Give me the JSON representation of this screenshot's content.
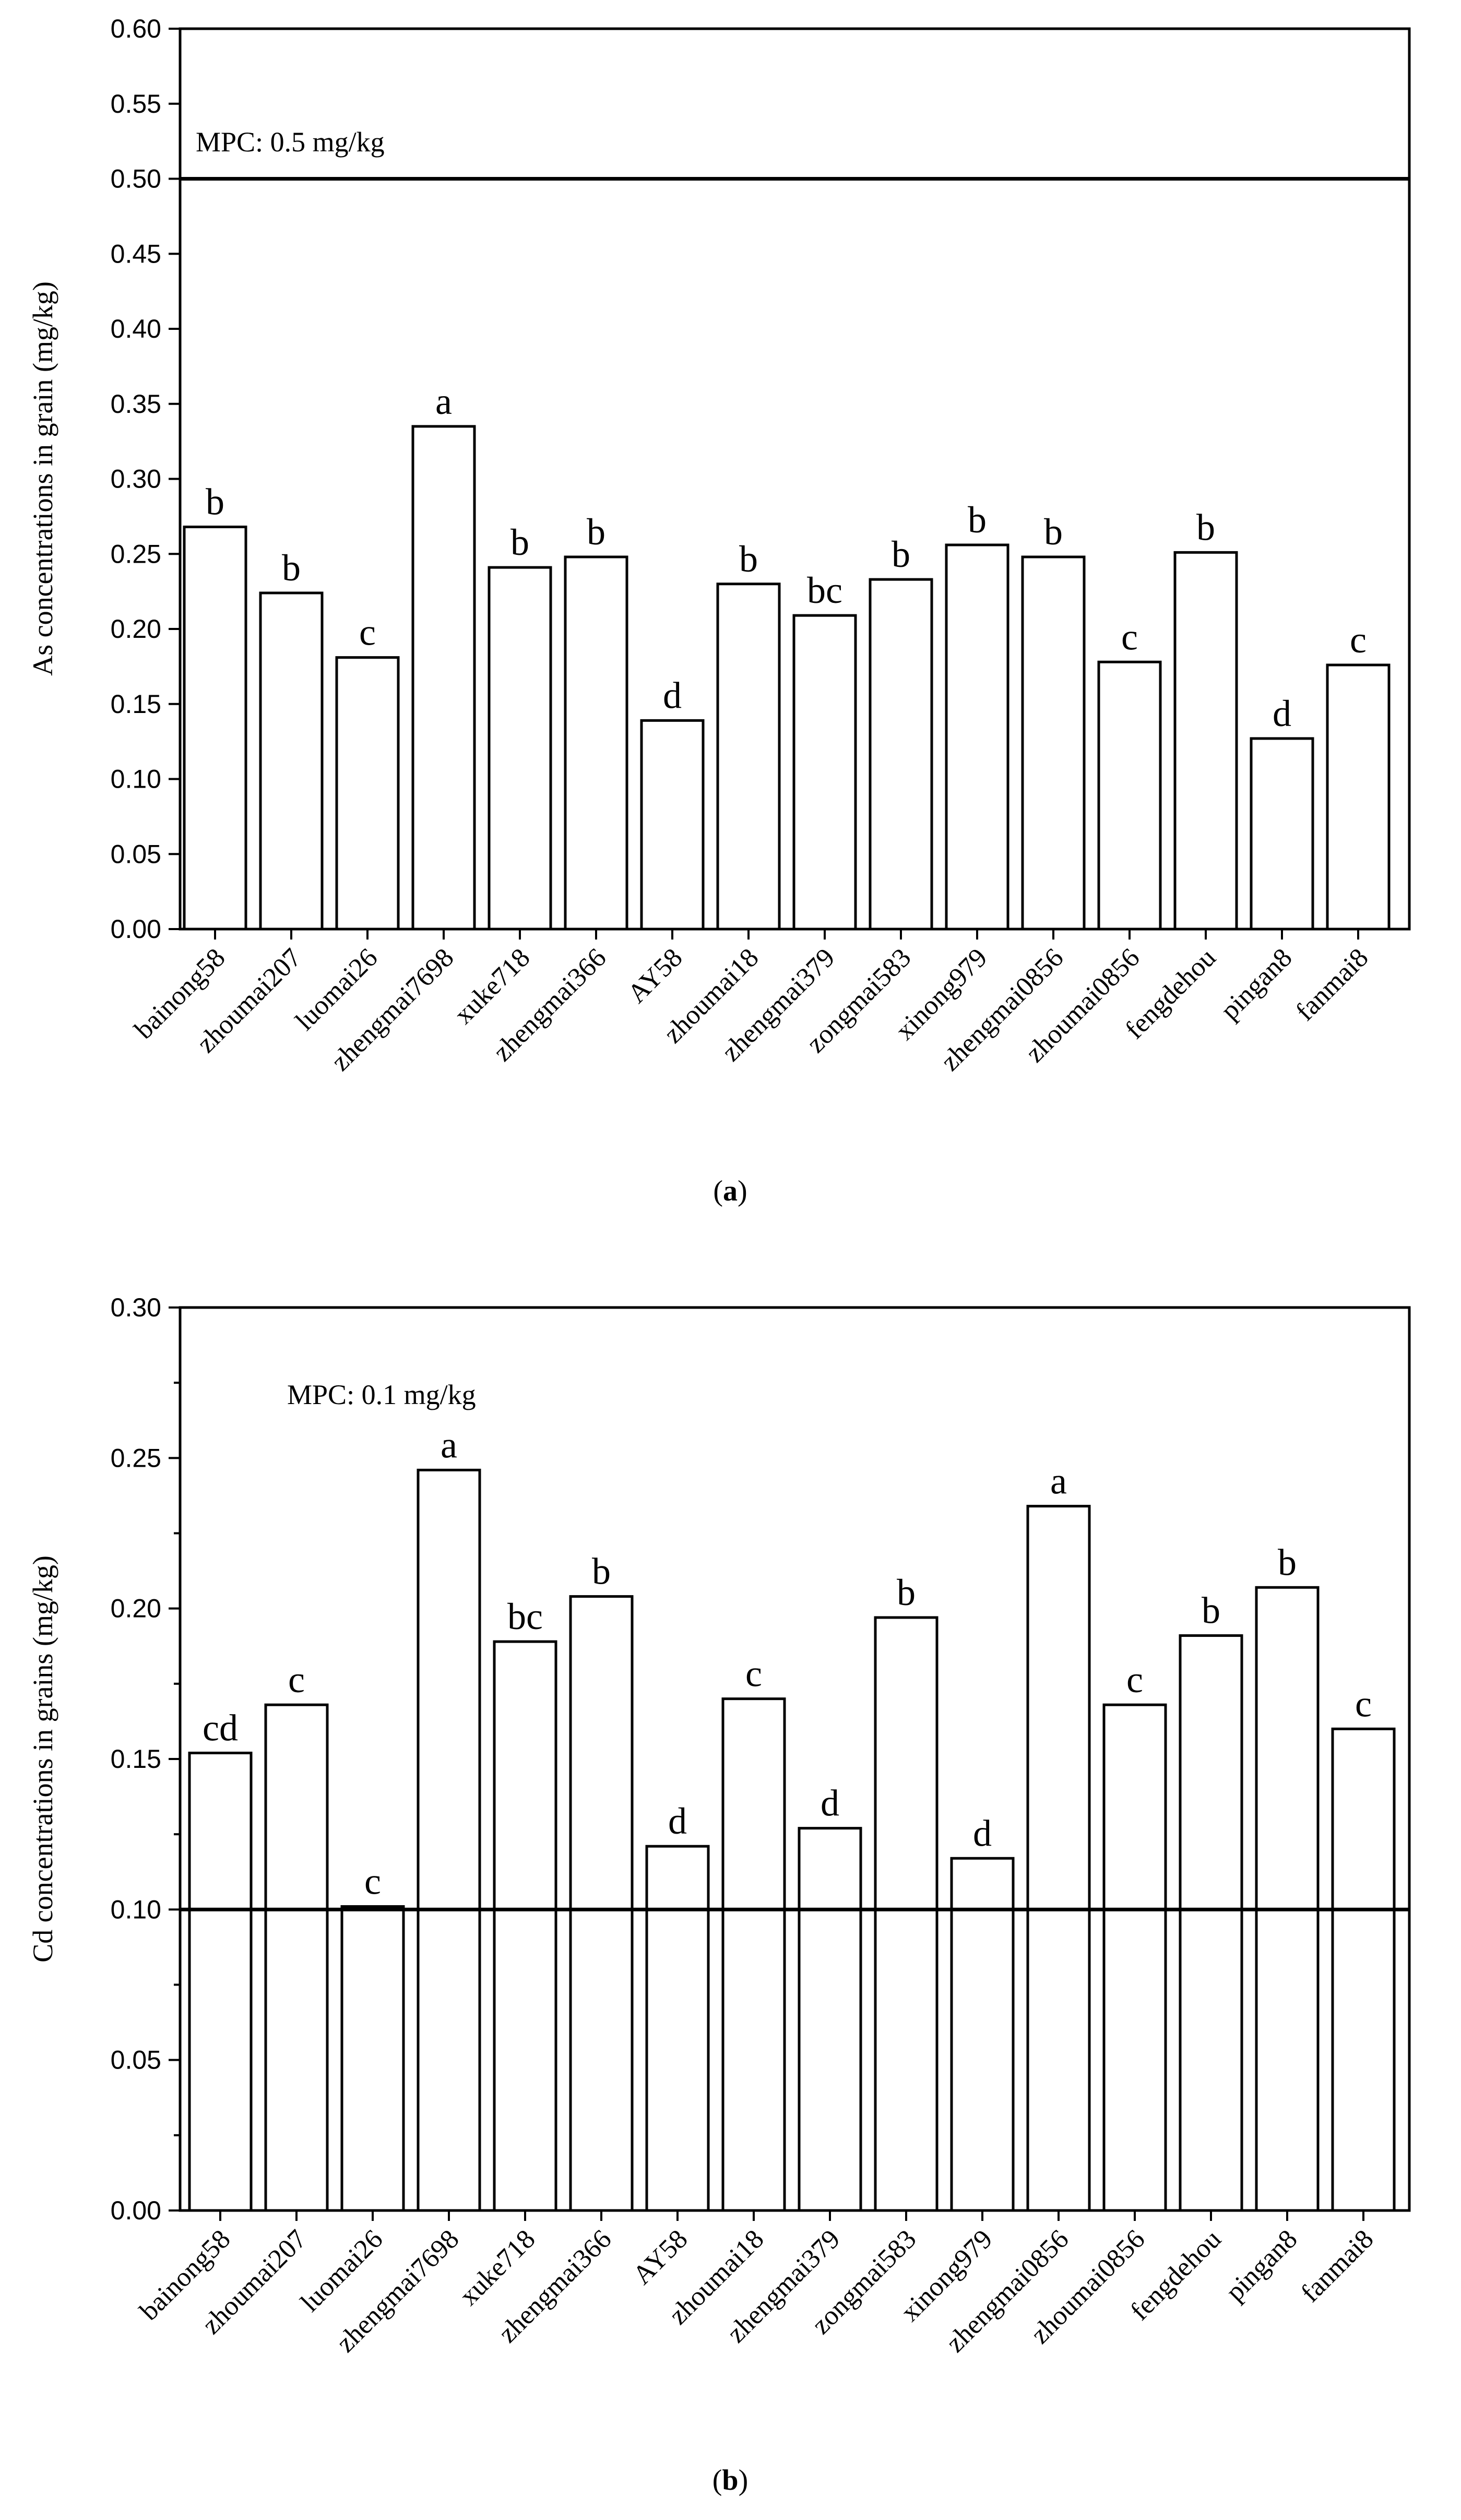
{
  "chart_data": [
    {
      "type": "bar",
      "panel_label": "a",
      "title": "",
      "xlabel": "",
      "ylabel": "As concentrations in grain (mg/kg)",
      "ylim": [
        0,
        0.6
      ],
      "yticks": [
        "0.00",
        "0.05",
        "0.10",
        "0.15",
        "0.20",
        "0.25",
        "0.30",
        "0.35",
        "0.40",
        "0.45",
        "0.50",
        "0.55",
        "0.60"
      ],
      "categories": [
        "bainong58",
        "zhoumai207",
        "luomai26",
        "zhengmai7698",
        "xuke718",
        "zhengmai366",
        "AY58",
        "zhoumai18",
        "zhengmai379",
        "zongmai583",
        "xinong979",
        "zhengmai0856",
        "zhoumai0856",
        "fengdehou",
        "pingan8",
        "fanmai8"
      ],
      "values": [
        0.268,
        0.224,
        0.181,
        0.335,
        0.241,
        0.248,
        0.139,
        0.23,
        0.209,
        0.233,
        0.256,
        0.248,
        0.178,
        0.251,
        0.127,
        0.176
      ],
      "significance_letters": [
        "b",
        "b",
        "c",
        "a",
        "b",
        "b",
        "d",
        "b",
        "bc",
        "b",
        "b",
        "b",
        "c",
        "b",
        "d",
        "c"
      ],
      "reference_line": {
        "value": 0.5,
        "label": "MPC: 0.5 mg/kg"
      },
      "grid": false,
      "legend": "none"
    },
    {
      "type": "bar",
      "panel_label": "b",
      "title": "",
      "xlabel": "",
      "ylabel": "Cd concentrations in grains (mg/kg)",
      "ylim": [
        0,
        0.3
      ],
      "yticks": [
        "0.00",
        "0.05",
        "0.10",
        "0.15",
        "0.20",
        "0.25",
        "0.30"
      ],
      "categories": [
        "bainong58",
        "zhoumai207",
        "luomai26",
        "zhengmai7698",
        "xuke718",
        "zhengmai366",
        "AY58",
        "zhoumai18",
        "zhengmai379",
        "zongmai583",
        "xinong979",
        "zhengmai0856",
        "zhoumai0856",
        "fengdehou",
        "pingan8",
        "fanmai8"
      ],
      "values": [
        0.152,
        0.168,
        0.101,
        0.246,
        0.189,
        0.204,
        0.121,
        0.17,
        0.127,
        0.197,
        0.117,
        0.234,
        0.168,
        0.191,
        0.207,
        0.16
      ],
      "significance_letters": [
        "cd",
        "c",
        "c",
        "a",
        "bc",
        "b",
        "d",
        "c",
        "d",
        "b",
        "d",
        "a",
        "c",
        "b",
        "b",
        "c"
      ],
      "reference_line": {
        "value": 0.1,
        "label": "MPC: 0.1 mg/kg"
      },
      "grid": false,
      "legend": "none"
    }
  ]
}
